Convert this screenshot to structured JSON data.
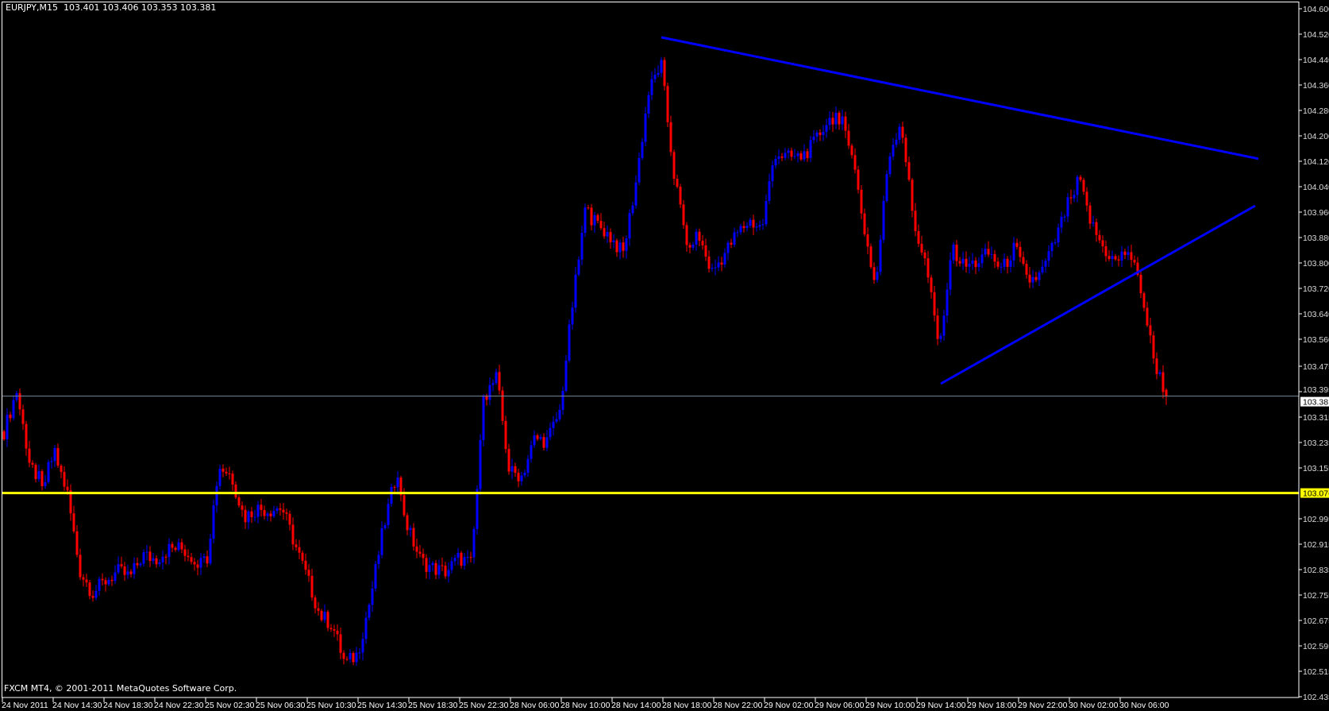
{
  "header": {
    "symbol": "EURJPY,M15",
    "ohlc": "103.401 103.406 103.353 103.381"
  },
  "footer": {
    "copyright": "FXCM MT4, © 2001-2011 MetaQuotes Software Corp."
  },
  "colors": {
    "background": "#000000",
    "bull": "#0000ff",
    "bear": "#ff0000",
    "frame": "#ffffff",
    "trendline": "#0000ff",
    "support_line": "#ffff00",
    "bid_line": "#778899"
  },
  "chart_data": {
    "type": "candlestick",
    "symbol": "EURJPY",
    "timeframe": "M15",
    "ylim": [
      102.435,
      104.6
    ],
    "grid": false,
    "y_ticks": [
      "104.600",
      "104.520",
      "104.440",
      "104.360",
      "104.280",
      "104.200",
      "104.120",
      "104.040",
      "103.960",
      "103.880",
      "103.800",
      "103.720",
      "103.640",
      "103.560",
      "103.475",
      "103.395",
      "103.315",
      "103.235",
      "103.155",
      "102.995",
      "102.915",
      "102.835",
      "102.755",
      "102.675",
      "102.595",
      "102.515",
      "102.435"
    ],
    "x_ticks": [
      "24 Nov 2011",
      "24 Nov 14:30",
      "24 Nov 18:30",
      "24 Nov 22:30",
      "25 Nov 02:30",
      "25 Nov 06:30",
      "25 Nov 10:30",
      "25 Nov 14:30",
      "25 Nov 18:30",
      "25 Nov 22:30",
      "28 Nov 06:00",
      "28 Nov 10:00",
      "28 Nov 14:00",
      "28 Nov 18:00",
      "28 Nov 22:00",
      "29 Nov 02:00",
      "29 Nov 06:00",
      "29 Nov 10:00",
      "29 Nov 14:00",
      "29 Nov 18:00",
      "29 Nov 22:00",
      "30 Nov 02:00",
      "30 Nov 06:00"
    ],
    "hourly_close_approx": [
      103.27,
      103.4,
      103.18,
      103.11,
      103.2,
      103.08,
      102.83,
      102.76,
      102.8,
      102.83,
      102.81,
      102.88,
      102.87,
      102.9,
      102.9,
      102.87,
      102.85,
      103.16,
      103.13,
      103.0,
      103.03,
      103.02,
      103.03,
      102.92,
      102.81,
      102.69,
      102.66,
      102.54,
      102.57,
      102.74,
      102.96,
      103.13,
      102.96,
      102.86,
      102.84,
      102.83,
      102.87,
      102.85,
      103.38,
      103.44,
      103.14,
      103.13,
      103.25,
      103.24,
      103.33,
      103.67,
      103.96,
      103.92,
      103.88,
      103.83,
      104.05,
      104.33,
      104.43,
      104.09,
      103.87,
      103.88,
      103.77,
      103.83,
      103.89,
      103.93,
      103.91,
      104.15,
      104.13,
      104.13,
      104.17,
      104.24,
      104.27,
      104.18,
      103.93,
      103.72,
      104.13,
      104.25,
      103.93,
      103.79,
      103.53,
      103.85,
      103.79,
      103.8,
      103.83,
      103.78,
      103.85,
      103.74,
      103.76,
      103.85,
      103.96,
      104.07,
      103.93,
      103.85,
      103.8,
      103.84,
      103.72,
      103.5,
      103.381
    ],
    "last_bar": {
      "open": 103.401,
      "high": 103.406,
      "low": 103.353,
      "close": 103.381
    },
    "horizontal_lines": [
      {
        "price": 103.076,
        "label": "103.076",
        "color": "#ffff00"
      },
      {
        "price": 103.381,
        "label": "103.381",
        "color": "#778899"
      }
    ],
    "trendlines": [
      {
        "start_time": "28 Nov 17:45",
        "start_price": 104.51,
        "end_time": "30 Nov 16:45",
        "end_price": 104.128,
        "color": "#0000ff"
      },
      {
        "start_time": "29 Nov 15:45",
        "start_price": 103.42,
        "end_time": "30 Nov 16:30",
        "end_price": 103.98,
        "color": "#0000ff"
      }
    ]
  }
}
